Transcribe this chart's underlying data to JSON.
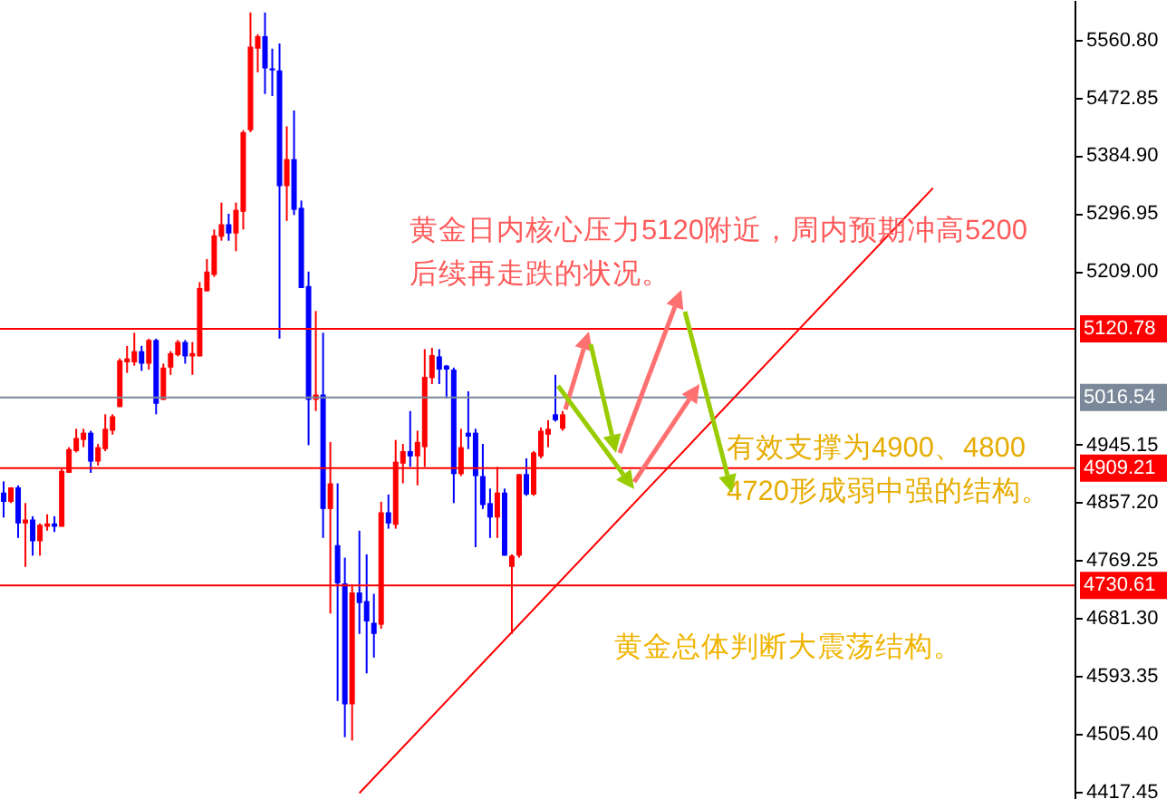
{
  "chart_data": {
    "type": "candlestick",
    "categories": [
      null,
      null,
      null,
      null,
      null,
      null,
      null,
      null,
      null,
      null,
      null,
      null,
      null,
      null,
      null,
      null,
      null,
      null,
      null,
      null,
      null,
      null,
      null,
      null,
      null,
      null,
      null,
      null,
      null,
      null,
      null,
      null,
      null,
      null,
      null,
      null,
      null,
      null,
      null,
      null,
      null,
      null,
      null,
      null,
      null,
      null,
      null,
      null,
      null,
      null,
      null,
      null,
      null,
      null,
      null,
      null,
      null,
      null,
      null,
      null,
      null,
      null,
      null,
      null,
      null,
      null,
      null,
      null,
      null,
      null,
      null,
      null,
      null,
      null,
      null,
      null,
      null,
      null,
      null,
      null,
      null,
      null,
      null,
      null,
      null,
      null,
      null,
      null,
      null,
      null,
      null,
      null,
      null,
      null,
      null,
      null,
      null,
      null,
      null,
      null,
      null,
      null,
      null,
      null,
      null,
      null,
      null,
      null,
      null,
      null,
      null,
      null,
      null,
      null,
      null,
      null,
      null,
      null,
      null,
      null,
      null,
      null,
      null,
      null,
      null,
      null,
      null,
      null,
      null,
      null,
      null,
      null,
      null,
      null,
      null,
      null,
      null,
      null,
      null,
      null,
      null,
      null,
      null,
      null,
      null,
      null,
      null,
      null
    ],
    "ohlc": [
      [
        4872,
        4889,
        4834,
        4858
      ],
      [
        4858,
        4880,
        4856,
        4880
      ],
      [
        4880,
        4883,
        4803,
        4825
      ],
      [
        4825,
        4856,
        4759,
        4831
      ],
      [
        4831,
        4836,
        4776,
        4798
      ],
      [
        4798,
        4825,
        4776,
        4823
      ],
      [
        4820,
        4839,
        4814,
        4825
      ],
      [
        4825,
        4836,
        4812,
        4820
      ],
      [
        4820,
        4908,
        4820,
        4905
      ],
      [
        4902,
        4941,
        4902,
        4938
      ],
      [
        4935,
        4969,
        4933,
        4955
      ],
      [
        4952,
        4969,
        4941,
        4963
      ],
      [
        4963,
        4966,
        4902,
        4919
      ],
      [
        4919,
        4946,
        4913,
        4941
      ],
      [
        4938,
        4991,
        4935,
        4969
      ],
      [
        4966,
        4991,
        4960,
        4988
      ],
      [
        5002,
        5076,
        5002,
        5073
      ],
      [
        5070,
        5095,
        5054,
        5076
      ],
      [
        5070,
        5115,
        5065,
        5087
      ],
      [
        5087,
        5095,
        5057,
        5068
      ],
      [
        5068,
        5106,
        5059,
        5104
      ],
      [
        5104,
        5106,
        4991,
        5007
      ],
      [
        5013,
        5068,
        5013,
        5062
      ],
      [
        5062,
        5087,
        5051,
        5084
      ],
      [
        5081,
        5104,
        5079,
        5101
      ],
      [
        5101,
        5104,
        5068,
        5079
      ],
      [
        5079,
        5101,
        5051,
        5084
      ],
      [
        5079,
        5192,
        5079,
        5183
      ],
      [
        5178,
        5227,
        5178,
        5208
      ],
      [
        5203,
        5272,
        5200,
        5263
      ],
      [
        5261,
        5313,
        5255,
        5280
      ],
      [
        5280,
        5296,
        5255,
        5266
      ],
      [
        5266,
        5313,
        5239,
        5302
      ],
      [
        5299,
        5423,
        5272,
        5420
      ],
      [
        5423,
        5602,
        5420,
        5550
      ],
      [
        5547,
        5569,
        5511,
        5566
      ],
      [
        5566,
        5602,
        5478,
        5517
      ],
      [
        5517,
        5547,
        5475,
        5514
      ],
      [
        5514,
        5555,
        5106,
        5338
      ],
      [
        5338,
        5429,
        5285,
        5379
      ],
      [
        5379,
        5453,
        5294,
        5302
      ],
      [
        5305,
        5316,
        5183,
        5183
      ],
      [
        5186,
        5208,
        4944,
        5013
      ],
      [
        5013,
        5148,
        4996,
        5021
      ],
      [
        5021,
        5115,
        4803,
        4847
      ],
      [
        4847,
        4949,
        4688,
        4886
      ],
      [
        4792,
        4886,
        4555,
        4734
      ],
      [
        4734,
        4773,
        4500,
        4550
      ],
      [
        4550,
        4732,
        4495,
        4720
      ],
      [
        4720,
        4814,
        4657,
        4704
      ],
      [
        4707,
        4778,
        4597,
        4676
      ],
      [
        4674,
        4718,
        4621,
        4657
      ],
      [
        4671,
        4858,
        4665,
        4842
      ],
      [
        4842,
        4869,
        4817,
        4825
      ],
      [
        4823,
        4952,
        4817,
        4919
      ],
      [
        4916,
        4946,
        4886,
        4935
      ],
      [
        4935,
        4996,
        4911,
        4927
      ],
      [
        4927,
        4966,
        4883,
        4949
      ],
      [
        4941,
        5090,
        4911,
        5048
      ],
      [
        5046,
        5092,
        5037,
        5081
      ],
      [
        5079,
        5090,
        5037,
        5059
      ],
      [
        5065,
        5066,
        5015,
        5059
      ],
      [
        5059,
        5062,
        4856,
        4900
      ],
      [
        4900,
        4969,
        4897,
        4941
      ],
      [
        4963,
        5026,
        4938,
        4957
      ],
      [
        4963,
        4969,
        4789,
        4897
      ],
      [
        4897,
        4946,
        4847,
        4853
      ],
      [
        4856,
        4878,
        4803,
        4834
      ],
      [
        4834,
        4911,
        4803,
        4872
      ],
      [
        4872,
        4878,
        4776,
        4776
      ],
      [
        4759,
        4778,
        4657,
        4776
      ],
      [
        4776,
        4900,
        4773,
        4900
      ],
      [
        4900,
        4924,
        4867,
        4869
      ],
      [
        4869,
        4935,
        4867,
        4933
      ],
      [
        4927,
        4971,
        4924,
        4966
      ],
      [
        4960,
        4982,
        4941,
        4969
      ],
      [
        4991,
        5051,
        4980,
        4982
      ],
      [
        4969,
        4996,
        4966,
        4991
      ],
      null,
      null,
      null,
      null,
      null,
      null,
      null,
      null,
      null,
      null,
      null,
      null,
      null,
      null,
      null,
      null,
      null,
      null,
      null,
      null,
      null,
      null,
      null,
      null,
      null,
      null,
      null,
      null,
      null,
      null,
      null,
      null,
      null,
      null,
      null,
      null,
      null,
      null,
      null,
      null,
      null,
      null,
      null,
      null,
      null,
      null,
      null,
      null,
      null,
      null,
      null,
      null,
      null,
      null,
      null,
      null,
      null,
      null,
      null,
      null,
      null,
      null,
      null,
      null,
      null,
      null,
      null,
      null,
      null,
      null
    ],
    "colors": [
      "#0000ff",
      "#ff0000",
      "#0000ff",
      "#ff0000",
      "#0000ff",
      "#ff0000",
      "#ff0000",
      "#0000ff",
      "#ff0000",
      "#ff0000",
      "#ff0000",
      "#ff0000",
      "#0000ff",
      "#ff0000",
      "#ff0000",
      "#ff0000",
      "#ff0000",
      "#ff0000",
      "#ff0000",
      "#0000ff",
      "#ff0000",
      "#0000ff",
      "#ff0000",
      "#ff0000",
      "#ff0000",
      "#0000ff",
      "#ff0000",
      "#ff0000",
      "#ff0000",
      "#ff0000",
      "#ff0000",
      "#0000ff",
      "#ff0000",
      "#ff0000",
      "#ff0000",
      "#ff0000",
      "#0000ff",
      "#0000ff",
      "#0000ff",
      "#ff0000",
      "#0000ff",
      "#0000ff",
      "#0000ff",
      "#ff0000",
      "#0000ff",
      "#ff0000",
      "#0000ff",
      "#0000ff",
      "#ff0000",
      "#0000ff",
      "#0000ff",
      "#0000ff",
      "#ff0000",
      "#0000ff",
      "#ff0000",
      "#ff0000",
      "#0000ff",
      "#ff0000",
      "#ff0000",
      "#ff0000",
      "#0000ff",
      "#0000ff",
      "#0000ff",
      "#ff0000",
      "#0000ff",
      "#0000ff",
      "#0000ff",
      "#0000ff",
      "#ff0000",
      "#0000ff",
      "#ff0000",
      "#ff0000",
      "#0000ff",
      "#ff0000",
      "#ff0000",
      "#ff0000",
      "#0000ff",
      "#ff0000",
      null,
      null,
      null,
      null,
      null,
      null,
      null,
      null,
      null,
      null,
      null,
      null,
      null,
      null,
      null,
      null,
      null,
      null,
      null,
      null,
      null,
      null,
      null,
      null,
      null,
      null,
      null,
      null,
      null,
      null,
      null,
      null,
      null,
      null,
      null,
      null,
      null,
      null,
      null,
      null,
      null,
      null,
      null,
      null,
      null,
      null,
      null,
      null,
      null,
      null,
      null,
      null,
      null,
      null,
      null,
      null,
      null,
      null,
      null,
      null,
      null,
      null,
      null,
      null,
      null,
      null,
      null,
      null,
      null,
      null
    ],
    "series": [
      {
        "type": "line",
        "color": "#ff0000",
        "values": [
          null,
          null,
          null,
          null,
          null,
          null,
          null,
          null,
          null,
          null,
          null,
          null,
          null,
          null,
          null,
          null,
          null,
          null,
          null,
          null,
          null,
          null,
          null,
          null,
          null,
          null,
          null,
          null,
          null,
          null,
          null,
          null,
          null,
          null,
          null,
          null,
          null,
          null,
          null,
          null,
          null,
          null,
          null,
          null,
          null,
          null,
          null,
          null,
          null,
          4415,
          null,
          null,
          null,
          null,
          null,
          null,
          null,
          null,
          null,
          null,
          null,
          null,
          null,
          null,
          null,
          null,
          null,
          null,
          null,
          null,
          null,
          null,
          null,
          null,
          null,
          null,
          null,
          null,
          null,
          null,
          null,
          null,
          null,
          null,
          null,
          null,
          null,
          null,
          null,
          null,
          null,
          null,
          null,
          null,
          null,
          null,
          null,
          null,
          null,
          null,
          null,
          null,
          null,
          null,
          null,
          null,
          null,
          null,
          null,
          null,
          null,
          null,
          null,
          null,
          null,
          null,
          null,
          null,
          null,
          null,
          null,
          null,
          null,
          null,
          null,
          null,
          null,
          null,
          5335,
          null,
          null,
          null,
          null,
          null,
          null,
          null,
          null,
          null,
          null,
          null,
          null,
          null,
          null,
          null,
          null,
          null,
          null,
          null
        ]
      }
    ],
    "ylim": [
      4406,
      5621
    ],
    "yticks": [
      {
        "value": 5560.8,
        "label": "5560.80"
      },
      {
        "value": 5472.85,
        "label": "5472.85"
      },
      {
        "value": 5384.9,
        "label": "5384.90"
      },
      {
        "value": 5296.95,
        "label": "5296.95"
      },
      {
        "value": 5209,
        "label": "5209.00"
      },
      {
        "value": 4945.15,
        "label": "4945.15"
      },
      {
        "value": 4857.2,
        "label": "4857.20"
      },
      {
        "value": 4769.25,
        "label": "4769.25"
      },
      {
        "value": 4681.3,
        "label": "4681.30"
      },
      {
        "value": 4593.35,
        "label": "4593.35"
      },
      {
        "value": 4505.4,
        "label": "4505.40"
      },
      {
        "value": 4417.45,
        "label": "4417.45"
      }
    ],
    "ref_lines": [
      {
        "axis": "y",
        "value": 5120.78,
        "label": "5120.78",
        "color": "#ff0000"
      },
      {
        "axis": "y",
        "value": 5016.54,
        "label": "5016.54",
        "color": "#7a8899"
      },
      {
        "axis": "y",
        "value": 4909.21,
        "label": "4909.21",
        "color": "#ff0000"
      },
      {
        "axis": "y",
        "value": 4730.61,
        "label": "4730.61",
        "color": "#ff0000"
      }
    ],
    "annotations": [
      "黄金日内核心压力5120附近，周内预期冲高5200",
      "后续再走跌的状况。",
      "有效支撑为4900、4800",
      "4720形成弱中强的结构。",
      "黄金总体判断大震荡结构。"
    ]
  }
}
